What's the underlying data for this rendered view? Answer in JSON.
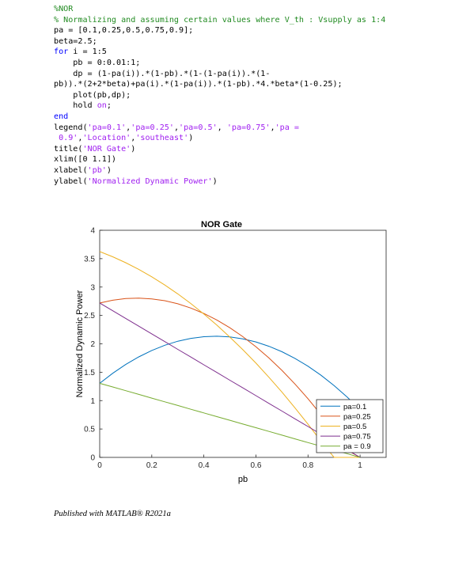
{
  "code_lines": [
    [
      {
        "c": "cmt",
        "t": "%NOR"
      }
    ],
    [
      {
        "c": "cmt",
        "t": "% Normalizing and assuming certain values where V_th : Vsupply as 1:4"
      }
    ],
    [
      {
        "c": "txt",
        "t": "pa = [0.1,0.25,0.5,0.75,0.9];"
      }
    ],
    [
      {
        "c": "txt",
        "t": "beta=2.5;"
      }
    ],
    [
      {
        "c": "kw",
        "t": "for"
      },
      {
        "c": "txt",
        "t": " i = 1:5"
      }
    ],
    [
      {
        "c": "txt",
        "t": "    pb = 0:0.01:1;"
      }
    ],
    [
      {
        "c": "txt",
        "t": "    dp = (1-pa(i)).*(1-pb).*(1-(1-pa(i)).*(1-"
      }
    ],
    [
      {
        "c": "txt",
        "t": "pb)).*(2+2*beta)+pa(i).*(1-pa(i)).*(1-pb).*4.*beta*(1-0.25);"
      }
    ],
    [
      {
        "c": "txt",
        "t": "    plot(pb,dp);"
      }
    ],
    [
      {
        "c": "txt",
        "t": "    hold "
      },
      {
        "c": "str",
        "t": "on"
      },
      {
        "c": "txt",
        "t": ";"
      }
    ],
    [
      {
        "c": "kw",
        "t": "end"
      }
    ],
    [
      {
        "c": "txt",
        "t": "legend("
      },
      {
        "c": "str",
        "t": "'pa=0.1'"
      },
      {
        "c": "txt",
        "t": ","
      },
      {
        "c": "str",
        "t": "'pa=0.25'"
      },
      {
        "c": "txt",
        "t": ","
      },
      {
        "c": "str",
        "t": "'pa=0.5'"
      },
      {
        "c": "txt",
        "t": ", "
      },
      {
        "c": "str",
        "t": "'pa=0.75'"
      },
      {
        "c": "txt",
        "t": ","
      },
      {
        "c": "str",
        "t": "'pa ="
      }
    ],
    [
      {
        "c": "str",
        "t": " 0.9'"
      },
      {
        "c": "txt",
        "t": ","
      },
      {
        "c": "str",
        "t": "'Location'"
      },
      {
        "c": "txt",
        "t": ","
      },
      {
        "c": "str",
        "t": "'southeast'"
      },
      {
        "c": "txt",
        "t": ")"
      }
    ],
    [
      {
        "c": "txt",
        "t": "title("
      },
      {
        "c": "str",
        "t": "'NOR Gate'"
      },
      {
        "c": "txt",
        "t": ")"
      }
    ],
    [
      {
        "c": "txt",
        "t": "xlim([0 1.1])"
      }
    ],
    [
      {
        "c": "txt",
        "t": "xlabel("
      },
      {
        "c": "str",
        "t": "'pb'"
      },
      {
        "c": "txt",
        "t": ")"
      }
    ],
    [
      {
        "c": "txt",
        "t": "ylabel("
      },
      {
        "c": "str",
        "t": "'Normalized Dynamic Power'"
      },
      {
        "c": "txt",
        "t": ")"
      }
    ]
  ],
  "chart_data": {
    "type": "line",
    "title": "NOR Gate",
    "xlabel": "pb",
    "ylabel": "Normalized Dynamic Power",
    "xlim": [
      0,
      1.1
    ],
    "ylim": [
      0,
      4
    ],
    "xticks": [
      "0",
      "0.2",
      "0.4",
      "0.6",
      "0.8",
      "1"
    ],
    "yticks": [
      "0",
      "0.5",
      "1",
      "1.5",
      "2",
      "2.5",
      "3",
      "3.5",
      "4"
    ],
    "grid": false,
    "legend_location": "southeast",
    "x": [
      0,
      0.05,
      0.1,
      0.15,
      0.2,
      0.25,
      0.3,
      0.35,
      0.4,
      0.45,
      0.5,
      0.55,
      0.6,
      0.65,
      0.7,
      0.75,
      0.8,
      0.85,
      0.9,
      0.95,
      1
    ],
    "series": [
      {
        "name": "pa=0.1",
        "color": "#0072BD",
        "values": [
          1.305,
          1.481,
          1.636,
          1.77,
          1.883,
          1.975,
          2.046,
          2.096,
          2.125,
          2.134,
          2.121,
          2.087,
          2.033,
          1.957,
          1.861,
          1.744,
          1.605,
          1.446,
          1.266,
          1.065,
          0.843
        ]
      },
      {
        "name": "pa=0.25",
        "color": "#D95319",
        "values": [
          2.719,
          2.768,
          2.797,
          2.805,
          2.792,
          2.759,
          2.705,
          2.63,
          2.535,
          2.419,
          2.283,
          2.126,
          1.948,
          1.75,
          1.532,
          1.292,
          1.033,
          0.752,
          0.451,
          0.129,
          0.0
        ]
      },
      {
        "name": "pa=0.5",
        "color": "#EDB120",
        "values": [
          3.625,
          3.533,
          3.428,
          3.311,
          3.18,
          3.036,
          2.879,
          2.709,
          2.525,
          2.329,
          2.119,
          1.896,
          1.66,
          1.41,
          1.148,
          0.873,
          0.584,
          0.283,
          0.0,
          0.0,
          0.0
        ]
      },
      {
        "name": "pa=0.75",
        "color": "#7E2F8E",
        "values": [
          2.719,
          2.583,
          2.447,
          2.311,
          2.175,
          2.039,
          1.903,
          1.767,
          1.631,
          1.495,
          1.359,
          1.223,
          1.087,
          0.951,
          0.815,
          0.679,
          0.543,
          0.407,
          0.272,
          0.136,
          0.0
        ]
      },
      {
        "name": "pa = 0.9",
        "color": "#77AC30",
        "values": [
          1.305,
          1.24,
          1.175,
          1.109,
          1.044,
          0.979,
          0.914,
          0.848,
          0.783,
          0.718,
          0.653,
          0.587,
          0.522,
          0.457,
          0.392,
          0.326,
          0.261,
          0.196,
          0.131,
          0.065,
          0.0
        ]
      }
    ]
  },
  "footer": {
    "text": "Published with MATLAB® R2021a"
  }
}
